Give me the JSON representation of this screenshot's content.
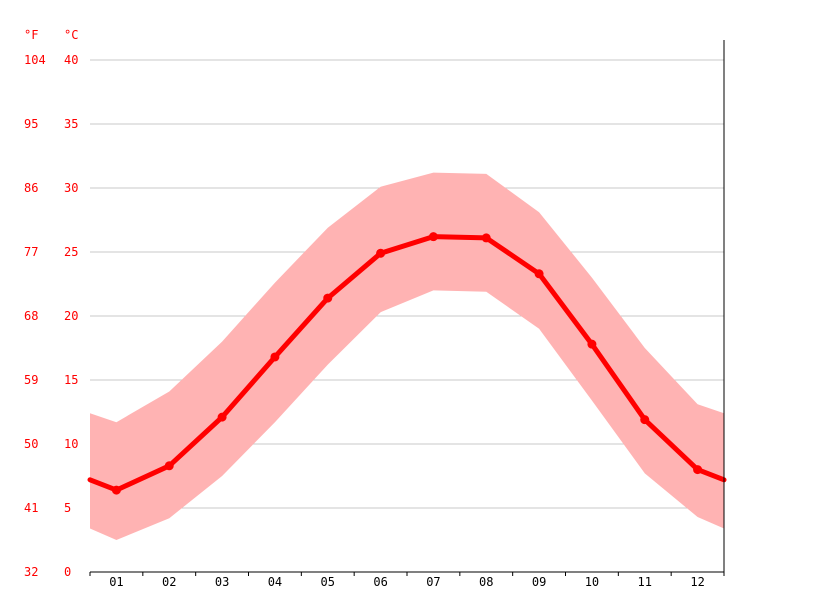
{
  "chart_data": {
    "type": "line",
    "title": "",
    "xlabel": "",
    "ylabel": "",
    "units": {
      "fahrenheit": "°F",
      "celsius": "°C"
    },
    "categories": [
      "01",
      "02",
      "03",
      "04",
      "05",
      "06",
      "07",
      "08",
      "09",
      "10",
      "11",
      "12"
    ],
    "y_ticks_celsius": [
      "0",
      "5",
      "10",
      "15",
      "20",
      "25",
      "30",
      "35",
      "40"
    ],
    "y_ticks_fahrenheit": [
      "32",
      "41",
      "50",
      "59",
      "68",
      "77",
      "86",
      "95",
      "104"
    ],
    "ylim": [
      0,
      40
    ],
    "grid": true,
    "series": [
      {
        "kind": "line",
        "color": "#ff0000",
        "values": [
          6.4,
          8.3,
          12.1,
          16.8,
          21.4,
          24.9,
          26.2,
          26.1,
          23.3,
          17.8,
          11.9,
          8.0
        ]
      },
      {
        "kind": "range",
        "color": "#ffb3b3",
        "lower": [
          2.5,
          4.2,
          7.5,
          11.7,
          16.2,
          20.3,
          22.0,
          21.9,
          19.0,
          13.4,
          7.7,
          4.3
        ],
        "upper": [
          11.7,
          14.1,
          18.0,
          22.6,
          26.9,
          30.1,
          31.2,
          31.1,
          28.1,
          23.0,
          17.5,
          13.1
        ]
      }
    ]
  }
}
